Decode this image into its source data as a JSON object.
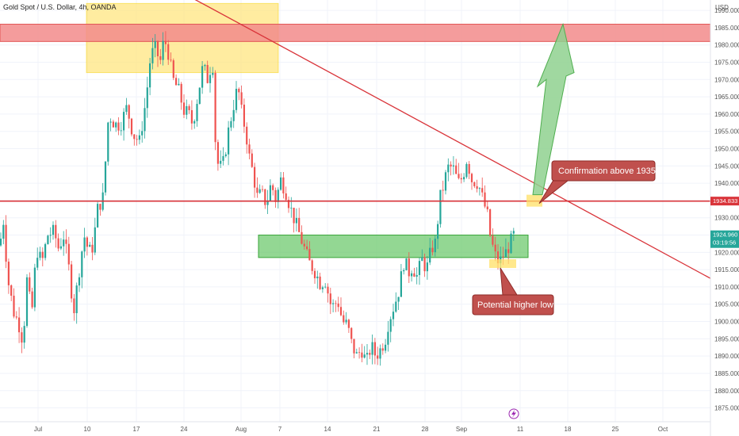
{
  "header": {
    "title": "Gold Spot / U.S. Dollar, 4h, OANDA",
    "currency": "USD"
  },
  "chart_data": {
    "type": "candlestick",
    "title": "Gold Spot / U.S. Dollar, 4h, OANDA",
    "yunit": "USD",
    "ylim": [
      1871,
      1993
    ],
    "y_ticks": [
      "1990.000",
      "1985.000",
      "1980.000",
      "1975.000",
      "1970.000",
      "1965.000",
      "1960.000",
      "1955.000",
      "1950.000",
      "1945.000",
      "1940.000",
      "1935.000",
      "1930.000",
      "1925.000",
      "1920.000",
      "1915.000",
      "1910.000",
      "1905.000",
      "1900.000",
      "1895.000",
      "1890.000",
      "1885.000",
      "1880.000",
      "1875.000"
    ],
    "x_ticks": [
      "Jul",
      "10",
      "17",
      "24",
      "Aug",
      "7",
      "14",
      "21",
      "28",
      "Sep",
      "11",
      "18",
      "25",
      "Oct"
    ],
    "candle_path": [
      [
        0,
        1922
      ],
      [
        4,
        1930
      ],
      [
        10,
        1912
      ],
      [
        18,
        1902
      ],
      [
        23,
        1900
      ],
      [
        29,
        1894
      ],
      [
        34,
        1912
      ],
      [
        40,
        1902
      ],
      [
        46,
        1921
      ],
      [
        53,
        1917
      ],
      [
        60,
        1925
      ],
      [
        68,
        1926
      ],
      [
        74,
        1921
      ],
      [
        80,
        1925
      ],
      [
        86,
        1917
      ],
      [
        93,
        1903
      ],
      [
        100,
        1915
      ],
      [
        106,
        1925
      ],
      [
        112,
        1920
      ],
      [
        118,
        1922
      ],
      [
        122,
        1932
      ],
      [
        130,
        1936
      ],
      [
        137,
        1960
      ],
      [
        145,
        1957
      ],
      [
        152,
        1957
      ],
      [
        160,
        1962
      ],
      [
        168,
        1954
      ],
      [
        176,
        1952
      ],
      [
        184,
        1964
      ],
      [
        190,
        1977
      ],
      [
        196,
        1979
      ],
      [
        202,
        1975
      ],
      [
        207,
        1982
      ],
      [
        212,
        1978
      ],
      [
        218,
        1970
      ],
      [
        225,
        1967
      ],
      [
        232,
        1961
      ],
      [
        238,
        1960
      ],
      [
        243,
        1957
      ],
      [
        250,
        1966
      ],
      [
        256,
        1974
      ],
      [
        262,
        1970
      ],
      [
        268,
        1976
      ],
      [
        272,
        1950
      ],
      [
        276,
        1944
      ],
      [
        282,
        1946
      ],
      [
        288,
        1955
      ],
      [
        294,
        1962
      ],
      [
        300,
        1968
      ],
      [
        305,
        1960
      ],
      [
        310,
        1955
      ],
      [
        314,
        1948
      ],
      [
        320,
        1942
      ],
      [
        324,
        1936
      ],
      [
        330,
        1937
      ],
      [
        336,
        1934
      ],
      [
        342,
        1940
      ],
      [
        348,
        1935
      ],
      [
        354,
        1941
      ],
      [
        360,
        1938
      ],
      [
        366,
        1933
      ],
      [
        372,
        1929
      ],
      [
        378,
        1925
      ],
      [
        384,
        1921
      ],
      [
        390,
        1917
      ],
      [
        396,
        1915
      ],
      [
        404,
        1911
      ],
      [
        410,
        1912
      ],
      [
        418,
        1904
      ],
      [
        426,
        1906
      ],
      [
        432,
        1900
      ],
      [
        438,
        1899
      ],
      [
        444,
        1893
      ],
      [
        450,
        1890
      ],
      [
        456,
        1892
      ],
      [
        462,
        1888
      ],
      [
        468,
        1893
      ],
      [
        474,
        1890
      ],
      [
        480,
        1892
      ],
      [
        486,
        1895
      ],
      [
        490,
        1900
      ],
      [
        496,
        1904
      ],
      [
        502,
        1908
      ],
      [
        506,
        1913
      ],
      [
        510,
        1918
      ],
      [
        515,
        1914
      ],
      [
        520,
        1916
      ],
      [
        526,
        1913
      ],
      [
        532,
        1918
      ],
      [
        538,
        1915
      ],
      [
        544,
        1921
      ],
      [
        550,
        1923
      ],
      [
        554,
        1935
      ],
      [
        558,
        1938
      ],
      [
        562,
        1942
      ],
      [
        566,
        1945
      ],
      [
        572,
        1944
      ],
      [
        578,
        1940
      ],
      [
        584,
        1942
      ],
      [
        588,
        1947
      ],
      [
        592,
        1944
      ],
      [
        596,
        1940
      ],
      [
        600,
        1941
      ],
      [
        606,
        1938
      ],
      [
        610,
        1934
      ],
      [
        614,
        1932
      ],
      [
        618,
        1925
      ],
      [
        622,
        1921
      ],
      [
        626,
        1918
      ],
      [
        630,
        1917
      ],
      [
        634,
        1919
      ],
      [
        638,
        1920
      ],
      [
        642,
        1922
      ],
      [
        648,
        1925
      ]
    ],
    "bull_color": "#26a69a",
    "bear_color": "#ef5350",
    "current_price": "1924.960",
    "countdown": "03:19:56",
    "resistance_line_price": "1934.833",
    "resistance_zone": [
      1981,
      1986
    ],
    "support_zone": [
      1918.5,
      1925
    ],
    "top_zone": [
      1972,
      1992
    ],
    "trendline": [
      [
        110,
        2010
      ],
      [
        932,
        1908
      ]
    ],
    "arrow_target_price": 1986,
    "annotations": [
      {
        "label": "Confirmation above 1935",
        "color": "#c0504d"
      },
      {
        "label": "Potential higher low",
        "color": "#c0504d"
      }
    ],
    "zone_colors": {
      "resistance": "#f28b8b",
      "support": "#6fc96f",
      "top": "#ffe680",
      "marker": "#ffe066",
      "trend": "#d9343a",
      "arrow": "#8fd18f"
    }
  }
}
